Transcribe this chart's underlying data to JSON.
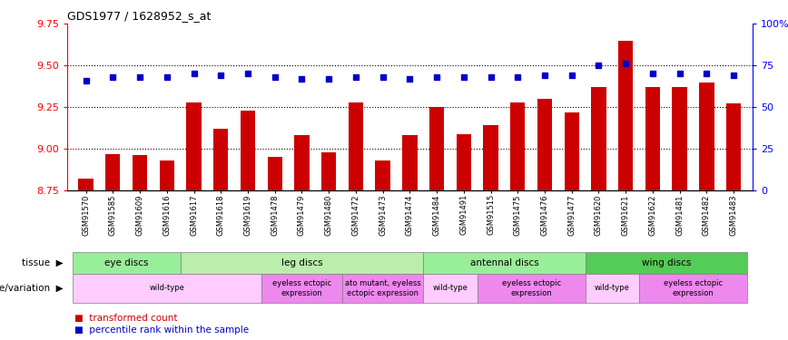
{
  "title": "GDS1977 / 1628952_s_at",
  "samples": [
    "GSM91570",
    "GSM91585",
    "GSM91609",
    "GSM91616",
    "GSM91617",
    "GSM91618",
    "GSM91619",
    "GSM91478",
    "GSM91479",
    "GSM91480",
    "GSM91472",
    "GSM91473",
    "GSM91474",
    "GSM91484",
    "GSM91491",
    "GSM91515",
    "GSM91475",
    "GSM91476",
    "GSM91477",
    "GSM91620",
    "GSM91621",
    "GSM91622",
    "GSM91481",
    "GSM91482",
    "GSM91483"
  ],
  "bar_values": [
    8.82,
    8.97,
    8.96,
    8.93,
    9.28,
    9.12,
    9.23,
    8.95,
    9.08,
    8.98,
    9.28,
    8.93,
    9.08,
    9.25,
    9.09,
    9.14,
    9.28,
    9.3,
    9.22,
    9.37,
    9.65,
    9.37,
    9.37,
    9.4,
    9.27
  ],
  "percentile_values": [
    66,
    68,
    68,
    68,
    70,
    69,
    70,
    68,
    67,
    67,
    68,
    68,
    67,
    68,
    68,
    68,
    68,
    69,
    69,
    75,
    76,
    70,
    70,
    70,
    69
  ],
  "bar_color": "#cc0000",
  "percentile_color": "#0000cc",
  "ylim_left": [
    8.75,
    9.75
  ],
  "ylim_right": [
    0,
    100
  ],
  "yticks_left": [
    8.75,
    9.0,
    9.25,
    9.5,
    9.75
  ],
  "yticks_right": [
    0,
    25,
    50,
    75,
    100
  ],
  "grid_values": [
    9.0,
    9.25,
    9.5
  ],
  "tissue_groups": [
    {
      "label": "eye discs",
      "start": 0,
      "end": 4,
      "color": "#99ee99"
    },
    {
      "label": "leg discs",
      "start": 4,
      "end": 13,
      "color": "#bbeeaa"
    },
    {
      "label": "antennal discs",
      "start": 13,
      "end": 19,
      "color": "#99ee99"
    },
    {
      "label": "wing discs",
      "start": 19,
      "end": 25,
      "color": "#55cc55"
    }
  ],
  "genotype_groups": [
    {
      "label": "wild-type",
      "start": 0,
      "end": 7,
      "color": "#ffccff"
    },
    {
      "label": "eyeless ectopic\nexpression",
      "start": 7,
      "end": 10,
      "color": "#ee88ee"
    },
    {
      "label": "ato mutant, eyeless\nectopic expression",
      "start": 10,
      "end": 13,
      "color": "#ee88ee"
    },
    {
      "label": "wild-type",
      "start": 13,
      "end": 15,
      "color": "#ffccff"
    },
    {
      "label": "eyeless ectopic\nexpression",
      "start": 15,
      "end": 19,
      "color": "#ee88ee"
    },
    {
      "label": "wild-type",
      "start": 19,
      "end": 21,
      "color": "#ffccff"
    },
    {
      "label": "eyeless ectopic\nexpression",
      "start": 21,
      "end": 25,
      "color": "#ee88ee"
    }
  ],
  "tissue_label": "tissue",
  "genotype_label": "genotype/variation",
  "legend_bar": "transformed count",
  "legend_percentile": "percentile rank within the sample",
  "bar_width": 0.55
}
